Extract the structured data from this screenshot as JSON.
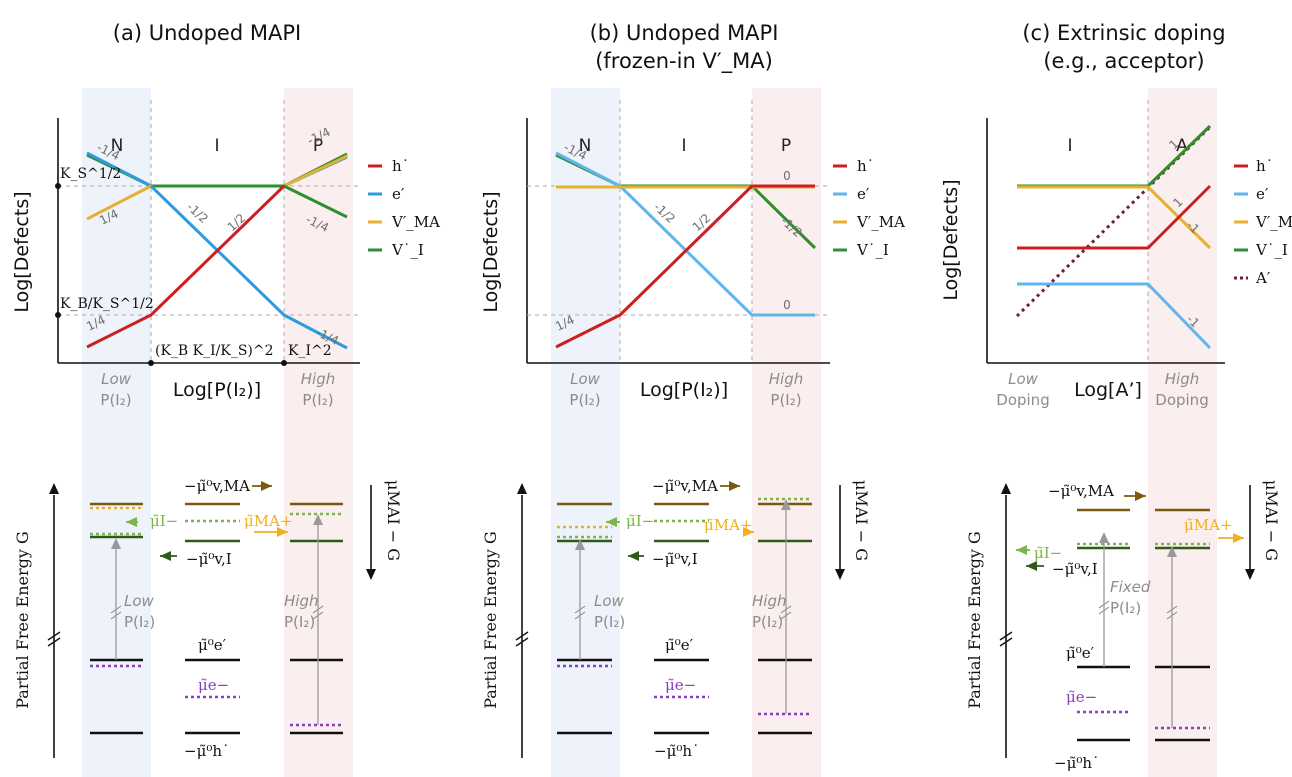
{
  "panels": [
    {
      "title_line1": "(a) Undoped MAPI",
      "title_line2": "",
      "regions": [
        "N",
        "I",
        "P"
      ],
      "y_axis": "Log[Defects]",
      "x_axis": "Log[P(I₂)]",
      "left_cond": [
        "Low",
        "P(I₂)"
      ],
      "right_cond": [
        "High",
        "P(I₂)"
      ],
      "mid_cond": [
        "",
        ""
      ],
      "slopes": [
        "-1/4",
        "1/4",
        "-1/2",
        "1/2",
        "1/4",
        "-1/4",
        "1/4",
        "-1/4"
      ],
      "ks_label": "K_S^1/2",
      "kb_label": "K_B/K_S^1/2",
      "x_tick1": "(K_B K_I/K_S)^2",
      "x_tick2": "K_I^2",
      "legend": [
        "h˙",
        "e′",
        "V′_MA",
        "V˙_I"
      ]
    },
    {
      "title_line1": "(b) Undoped MAPI",
      "title_line2": "(frozen-in V′_MA)",
      "regions": [
        "N",
        "I",
        "P"
      ],
      "y_axis": "Log[Defects]",
      "x_axis": "Log[P(I₂)]",
      "left_cond": [
        "Low",
        "P(I₂)"
      ],
      "right_cond": [
        "High",
        "P(I₂)"
      ],
      "mid_cond": [
        "",
        ""
      ],
      "slopes": [
        "-1/4",
        "-1/2",
        "1/2",
        "1/4",
        "0",
        "-1/2",
        "0"
      ],
      "legend": [
        "h˙",
        "e′",
        "V′_MA",
        "V˙_I"
      ]
    },
    {
      "title_line1": "(c) Extrinsic doping",
      "title_line2": "(e.g., acceptor)",
      "regions": [
        "I",
        "A"
      ],
      "y_axis": "Log[Defects]",
      "x_axis": "Log[A’]",
      "left_cond": [
        "Low",
        "Doping"
      ],
      "right_cond": [
        "High",
        "Doping"
      ],
      "mid_cond": [
        "Fixed",
        "P(I₂)"
      ],
      "slopes": [
        "1",
        "1",
        "-1",
        "-1"
      ],
      "legend": [
        "h˙",
        "e′",
        "V′_MA",
        "V˙_I",
        "A′"
      ]
    }
  ],
  "energy": {
    "y_axis": "Partial Free Energy G",
    "mu_label": "μMAI − G",
    "mu_v_ma": "−μ̃⁰v,MA",
    "mu_i": "μ̃I−",
    "mu_ma": "μ̃MA+",
    "mu_v_i": "−μ̃⁰v,I",
    "mu_e0": "μ̃⁰e′",
    "mu_e": "μ̃e−",
    "mu_h0": "−μ̃⁰h˙"
  },
  "colors": {
    "hole": "#cc1f1f",
    "electron": "#2f9ae0",
    "electron_b": "#5fb6ec",
    "v_ma": "#e6b030",
    "v_i": "#2f8f2f",
    "acceptor": "#6e1f3a",
    "level_v_ma": "#7a5a10",
    "level_v_i": "#2f5a1a",
    "mu_i": "#7ab648",
    "mu_ma": "#f0b020",
    "mu_e": "#8a3ec4"
  }
}
